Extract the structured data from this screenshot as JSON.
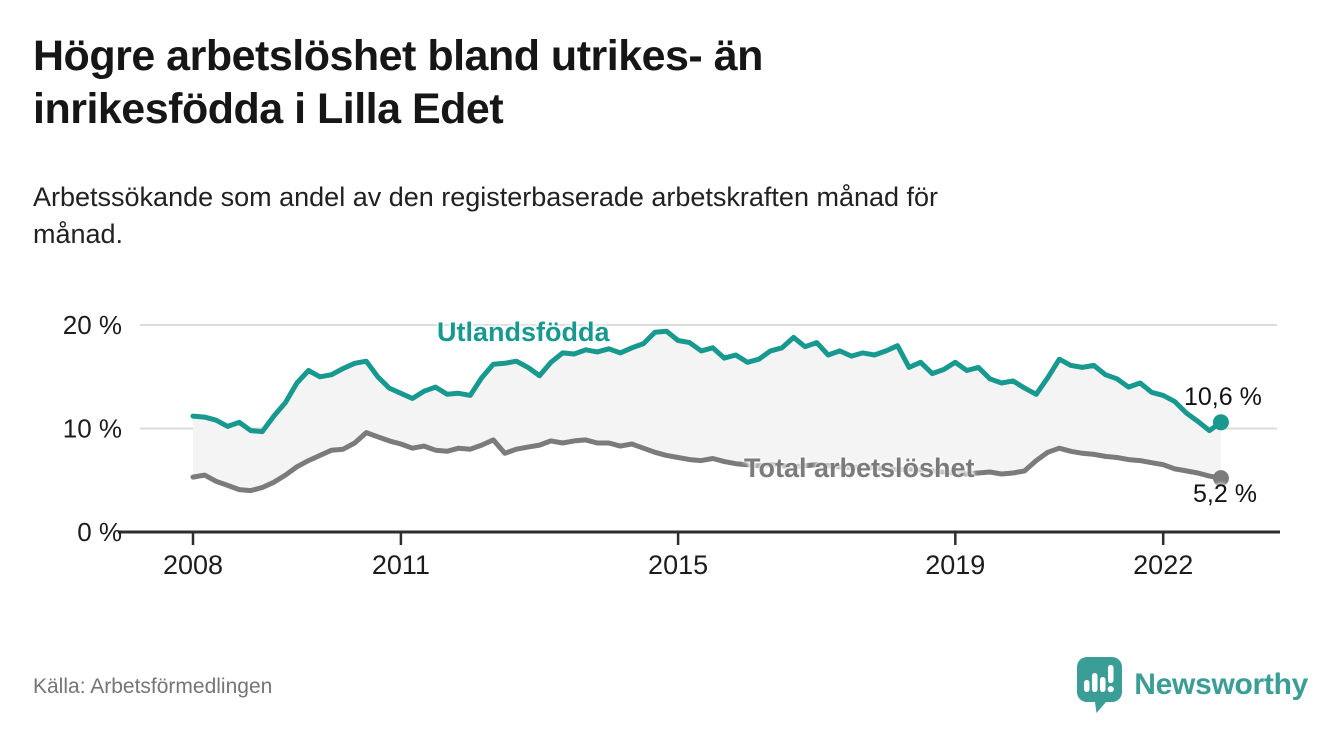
{
  "header": {
    "title_lines": [
      "Högre arbetslöshet bland utrikes- än",
      "inrikesfödda i Lilla Edet"
    ],
    "subtitle_lines": [
      "Arbetssökande som andel av den registerbaserade arbetskraften månad för",
      "månad."
    ]
  },
  "chart_data": {
    "type": "line",
    "title": "Högre arbetslöshet bland utrikes- än inrikesfödda i Lilla Edet",
    "subtitle": "Arbetssökande som andel av den registerbaserade arbetskraften månad för månad.",
    "x_start": 2008,
    "x_step_months": 2,
    "x_end": 2022.83,
    "x_ticks": [
      2008,
      2011,
      2015,
      2019,
      2022
    ],
    "y_ticks": [
      0,
      10,
      20
    ],
    "y_tick_suffix": " %",
    "ylim": [
      0,
      21.5
    ],
    "grid": "horizontal",
    "legend_position": "inline-labels",
    "band_fill": "#F4F4F4",
    "series": [
      {
        "name": "Utlandsfödda",
        "color": "#17998F",
        "end_label": "10,6 %",
        "end_value": 10.6,
        "values": [
          11.2,
          11.1,
          10.8,
          10.2,
          10.6,
          9.8,
          9.7,
          11.2,
          12.5,
          14.4,
          15.6,
          15.0,
          15.2,
          15.8,
          16.3,
          16.5,
          15.0,
          13.9,
          13.4,
          12.9,
          13.6,
          14.0,
          13.3,
          13.4,
          13.2,
          14.9,
          16.2,
          16.3,
          16.5,
          15.9,
          15.1,
          16.4,
          17.3,
          17.2,
          17.6,
          17.4,
          17.7,
          17.3,
          17.8,
          18.2,
          19.3,
          19.4,
          18.5,
          18.3,
          17.5,
          17.8,
          16.8,
          17.1,
          16.4,
          16.7,
          17.5,
          17.8,
          18.8,
          17.9,
          18.3,
          17.1,
          17.5,
          17.0,
          17.3,
          17.1,
          17.5,
          18.0,
          15.9,
          16.4,
          15.3,
          15.7,
          16.4,
          15.6,
          15.9,
          14.8,
          14.4,
          14.6,
          13.9,
          13.3,
          14.9,
          16.7,
          16.1,
          15.9,
          16.1,
          15.2,
          14.8,
          14.0,
          14.4,
          13.5,
          13.2,
          12.6,
          11.5,
          10.7,
          9.8,
          10.6
        ]
      },
      {
        "name": "Total arbetslöshet",
        "color": "#7B7B7B",
        "end_label": "5,2 %",
        "end_value": 5.2,
        "values": [
          5.3,
          5.5,
          4.9,
          4.5,
          4.1,
          4.0,
          4.3,
          4.8,
          5.5,
          6.3,
          6.9,
          7.4,
          7.9,
          8.0,
          8.6,
          9.6,
          9.2,
          8.8,
          8.5,
          8.1,
          8.3,
          7.9,
          7.8,
          8.1,
          8.0,
          8.4,
          8.9,
          7.6,
          8.0,
          8.2,
          8.4,
          8.8,
          8.6,
          8.8,
          8.9,
          8.6,
          8.6,
          8.3,
          8.5,
          8.1,
          7.7,
          7.4,
          7.2,
          7.0,
          6.9,
          7.1,
          6.8,
          6.6,
          6.5,
          6.4,
          6.5,
          6.4,
          6.3,
          6.4,
          6.5,
          6.4,
          6.3,
          6.2,
          6.3,
          6.2,
          6.1,
          6.0,
          6.1,
          6.0,
          5.9,
          5.8,
          5.7,
          5.6,
          5.7,
          5.8,
          5.6,
          5.7,
          5.9,
          6.9,
          7.7,
          8.1,
          7.8,
          7.6,
          7.5,
          7.3,
          7.2,
          7.0,
          6.9,
          6.7,
          6.5,
          6.1,
          5.9,
          5.7,
          5.4,
          5.2
        ]
      }
    ],
    "axis_color": "#2D2D2D",
    "grid_color": "#DBDBDB",
    "tick_label_color": "#1C1C1C"
  },
  "footer": {
    "source": "Källa: Arbetsförmedlingen",
    "logo_text": "Newsworthy",
    "logo_color": "#3A9E96"
  }
}
